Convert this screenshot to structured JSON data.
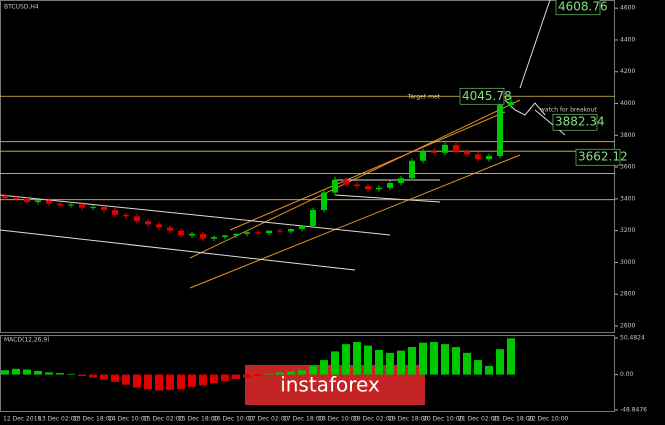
{
  "chart_data": {
    "type": "candlestick",
    "title": "BTCUSD,H4",
    "open": [
      3420,
      3405,
      3400,
      3380,
      3390,
      3370,
      3360,
      3365,
      3345,
      3350,
      3330,
      3300,
      3290,
      3260,
      3240,
      3220,
      3200,
      3170,
      3180,
      3150,
      3160,
      3170,
      3180,
      3190,
      3185,
      3200,
      3195,
      3210,
      3230,
      3330,
      3440,
      3520,
      3490,
      3480,
      3460,
      3470,
      3500,
      3530,
      3640,
      3700,
      3690,
      3740,
      3700,
      3680,
      3650,
      3670,
      3990
    ],
    "high": [
      3435,
      3420,
      3415,
      3400,
      3405,
      3385,
      3380,
      3380,
      3360,
      3365,
      3345,
      3315,
      3305,
      3275,
      3255,
      3235,
      3215,
      3195,
      3195,
      3170,
      3175,
      3185,
      3195,
      3205,
      3200,
      3215,
      3215,
      3225,
      3345,
      3455,
      3540,
      3535,
      3505,
      3495,
      3485,
      3515,
      3545,
      3655,
      3715,
      3720,
      3755,
      3755,
      3715,
      3695,
      3685,
      4045,
      4050
    ],
    "low": [
      3390,
      3385,
      3365,
      3365,
      3355,
      3345,
      3345,
      3330,
      3330,
      3315,
      3285,
      3275,
      3245,
      3225,
      3205,
      3185,
      3155,
      3155,
      3135,
      3135,
      3145,
      3155,
      3165,
      3170,
      3170,
      3180,
      3180,
      3195,
      3215,
      3315,
      3425,
      3475,
      3465,
      3445,
      3445,
      3455,
      3485,
      3515,
      3625,
      3675,
      3675,
      3685,
      3665,
      3635,
      3635,
      3655,
      3970
    ],
    "close": [
      3405,
      3400,
      3380,
      3390,
      3370,
      3360,
      3365,
      3345,
      3350,
      3330,
      3300,
      3290,
      3260,
      3240,
      3220,
      3200,
      3170,
      3180,
      3150,
      3160,
      3170,
      3180,
      3190,
      3185,
      3200,
      3195,
      3210,
      3230,
      3330,
      3440,
      3520,
      3490,
      3480,
      3460,
      3470,
      3500,
      3530,
      3640,
      3700,
      3690,
      3740,
      3700,
      3680,
      3650,
      3670,
      3990,
      4010
    ],
    "up_color": "#00c800",
    "down_color": "#e00000",
    "ylim": [
      2575,
      4620
    ],
    "yticks": [
      4600,
      4400,
      4200,
      4000,
      3800,
      3600,
      3400,
      3200,
      3000,
      2800,
      2600
    ],
    "levels": [
      {
        "value": 4045.78,
        "color": "#d8c050"
      },
      {
        "value": 3760,
        "color": "#d8c050"
      },
      {
        "value": 3700,
        "color": "#d8c050"
      },
      {
        "value": 3560,
        "color": "#d8c050"
      },
      {
        "value": 3395,
        "color": "#d8c050"
      }
    ],
    "annotations": [
      {
        "text": "4608.76",
        "value": 4608.76
      },
      {
        "text": "4045.78",
        "value": 4045.78
      },
      {
        "text": "3882.34",
        "value": 3882.34
      },
      {
        "text": "3662.12",
        "value": 3662.12
      }
    ],
    "notes": [
      "Target met",
      "watch for breakout"
    ],
    "x_labels": [
      "12 Dec 2018",
      "13 Dec 02:00",
      "13 Dec 18:00",
      "14 Dec 10:00",
      "15 Dec 02:00",
      "15 Dec 18:00",
      "16 Dec 10:00",
      "17 Dec 02:00",
      "17 Dec 18:00",
      "18 Dec 10:00",
      "19 Dec 02:00",
      "19 Dec 18:00",
      "20 Dec 10:00",
      "21 Dec 02:00",
      "21 Dec 18:00",
      "22 Dec 10:00"
    ],
    "macd": {
      "label": "MACD(12,26,9)",
      "ylim": [
        -48.85,
        50.48
      ],
      "yticks": [
        {
          "value": 50.48,
          "label": "50.4824"
        },
        {
          "value": 0,
          "label": "0.00"
        },
        {
          "value": -48.85,
          "label": "-48.8476"
        }
      ],
      "values": [
        6,
        8,
        7,
        5,
        3,
        2,
        1,
        -2,
        -4,
        -7,
        -10,
        -14,
        -18,
        -20,
        -22,
        -21,
        -20,
        -17,
        -15,
        -12,
        -9,
        -6,
        -4,
        -2,
        1,
        3,
        4,
        6,
        12,
        20,
        32,
        42,
        45,
        40,
        34,
        30,
        33,
        38,
        44,
        45,
        42,
        38,
        30,
        20,
        12,
        35,
        50
      ]
    },
    "watermark": "instaforex"
  }
}
